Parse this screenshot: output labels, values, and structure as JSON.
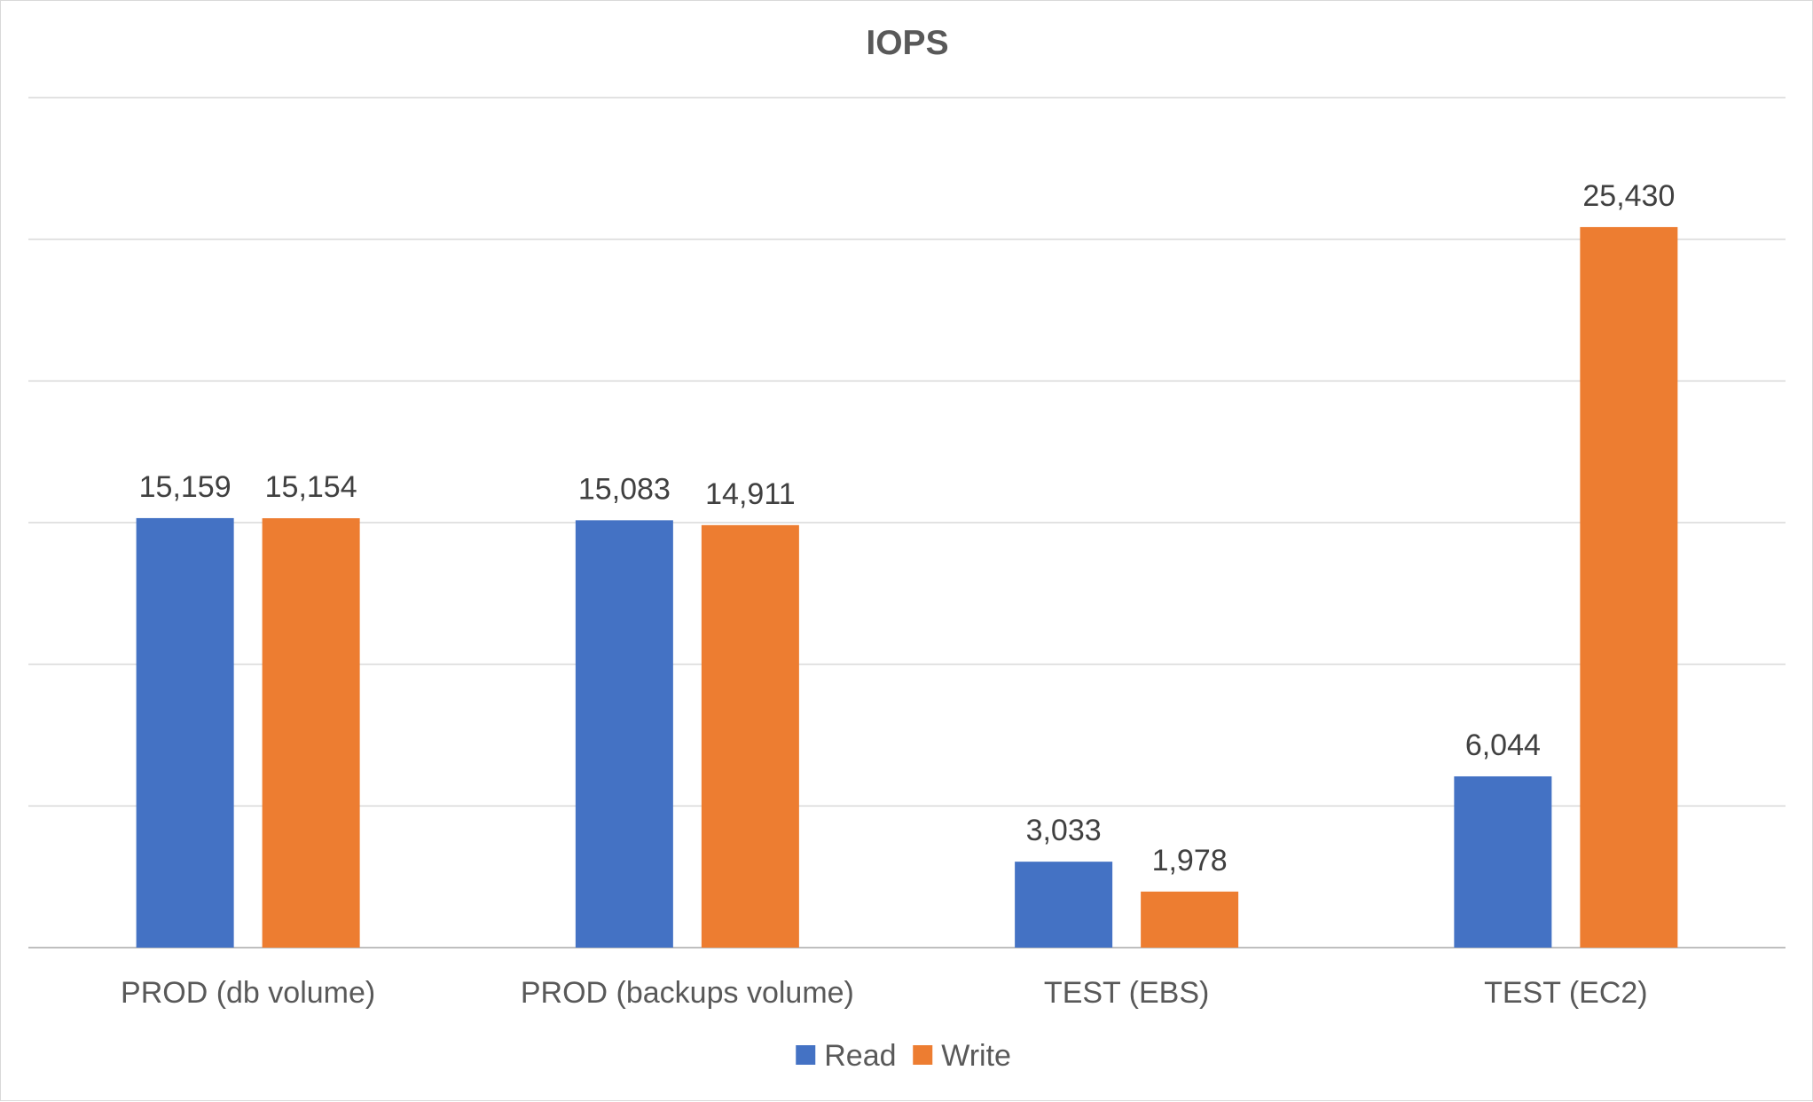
{
  "chart_data": {
    "type": "bar",
    "title": "IOPS",
    "xlabel": "",
    "ylabel": "",
    "categories": [
      "PROD (db volume)",
      "PROD (backups volume)",
      "TEST (EBS)",
      "TEST (EC2)"
    ],
    "series": [
      {
        "name": "Read",
        "color": "#4472C4",
        "values": [
          15159,
          15083,
          3033,
          6044
        ],
        "labels": [
          "15,159",
          "15,083",
          "3,033",
          "6,044"
        ]
      },
      {
        "name": "Write",
        "color": "#ED7D31",
        "values": [
          15154,
          14911,
          1978,
          25430
        ],
        "labels": [
          "15,154",
          "14,911",
          "1,978",
          "25,430"
        ]
      }
    ],
    "ylim": [
      0,
      30000
    ],
    "y_major_unit": 5000,
    "y_axis_labels_shown": false,
    "grid": true,
    "legend": "bottom"
  }
}
